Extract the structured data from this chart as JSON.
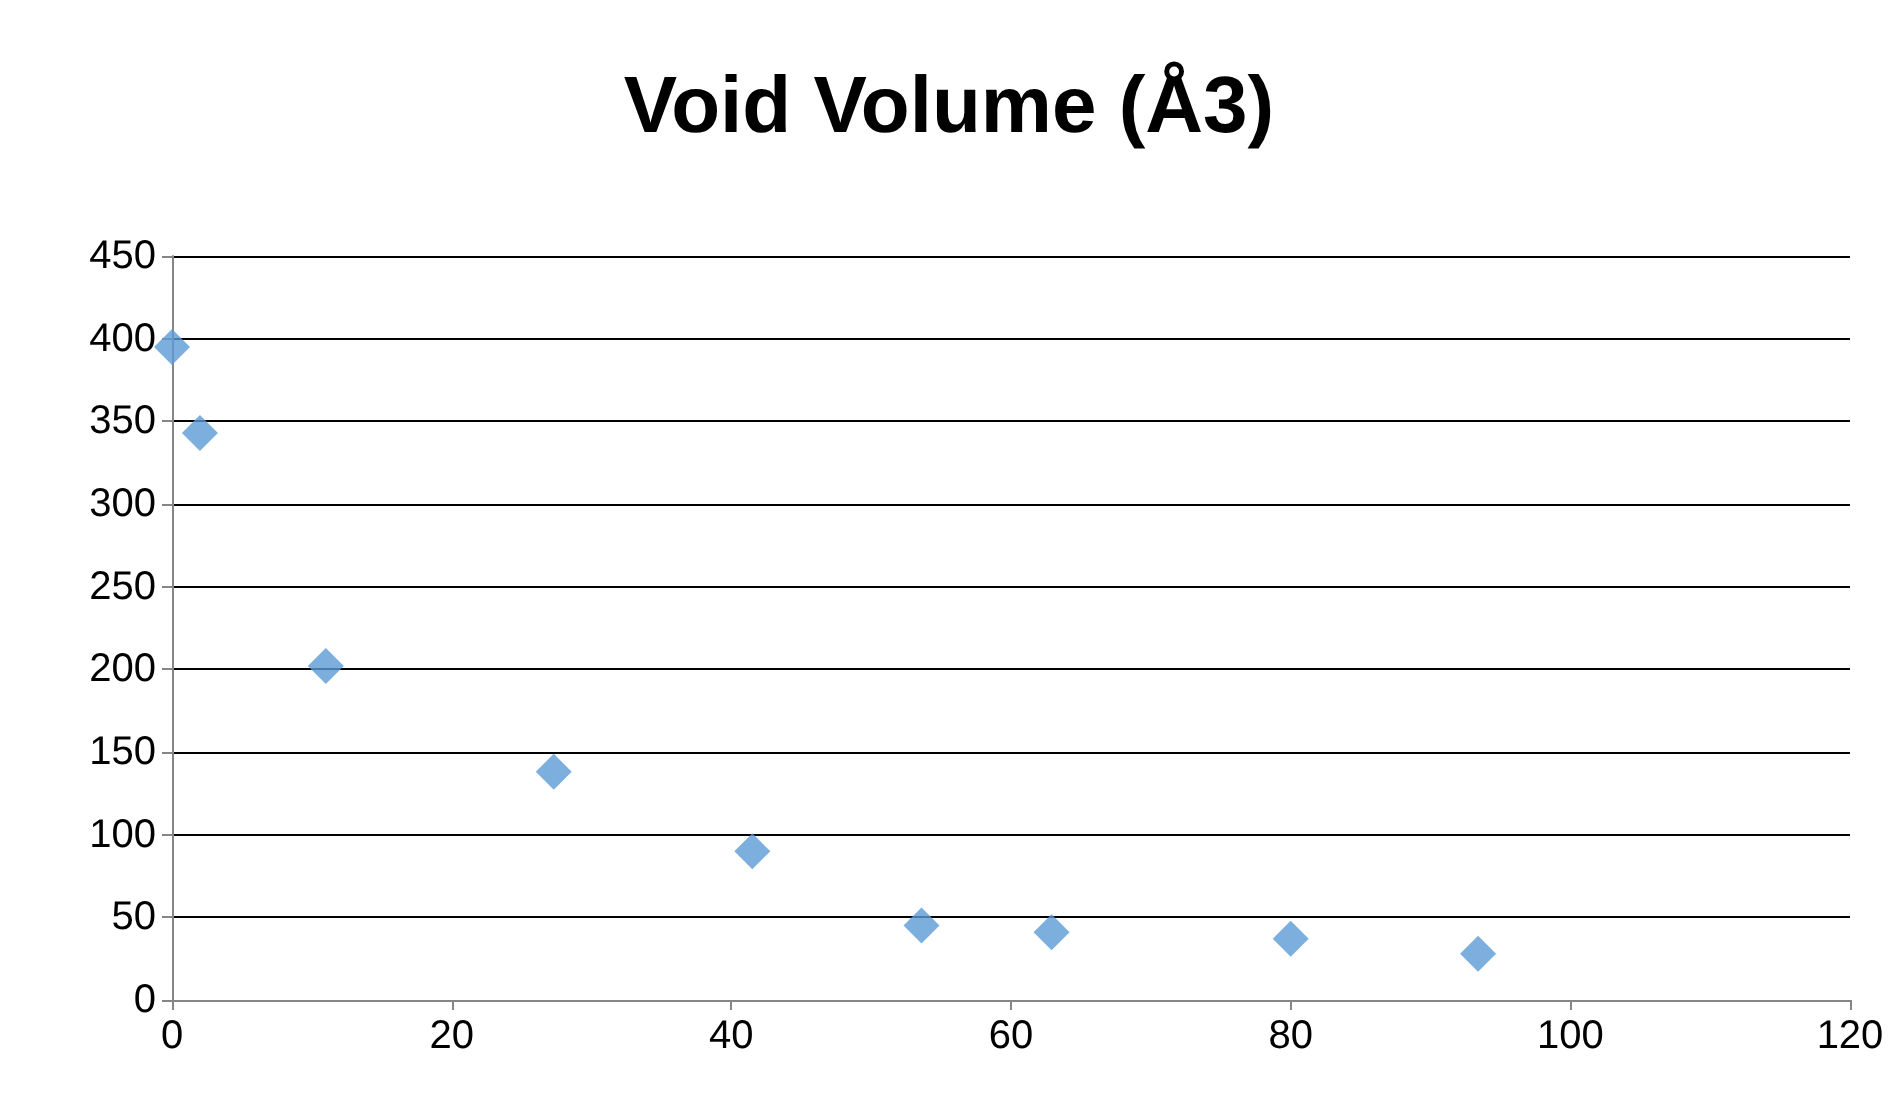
{
  "chart_data": {
    "type": "scatter",
    "title": "Void Volume (Å3)",
    "x": [
      0,
      2,
      11,
      27.3,
      41.5,
      53.6,
      62.9,
      80,
      93.4
    ],
    "values": [
      395,
      343,
      202,
      138,
      90,
      45,
      41,
      37,
      28
    ],
    "color": "#5b9bd5",
    "marker": "diamond",
    "xlim": [
      0,
      120
    ],
    "xticks": [
      0,
      20,
      40,
      60,
      80,
      100,
      120
    ],
    "ylim": [
      0,
      450
    ],
    "yticks": [
      0,
      50,
      100,
      150,
      200,
      250,
      300,
      350,
      400,
      450
    ],
    "grid": "y"
  }
}
